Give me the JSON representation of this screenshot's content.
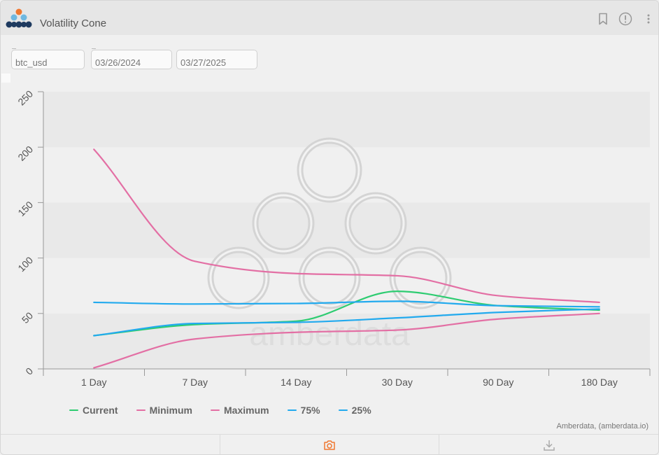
{
  "header": {
    "title": "Volatility Cone"
  },
  "filters": {
    "asset": "btc_usd",
    "start_date": "03/26/2024",
    "end_date": "03/27/2025"
  },
  "watermark": "amberdata",
  "credit": "Amberdata, (amberdata.io)",
  "colors": {
    "current": "#2ecc71",
    "minimum": "#e36fa4",
    "maximum": "#e36fa4",
    "p75": "#22aaee",
    "p25": "#22aaee",
    "accent": "#f07830"
  },
  "icons": {
    "bookmark": "bookmark-icon",
    "info": "info-icon",
    "more": "more-vertical-icon",
    "camera": "camera-icon",
    "download": "download-icon"
  },
  "chart_data": {
    "type": "line",
    "title": "",
    "xlabel": "",
    "ylabel": "",
    "categories": [
      "1 Day",
      "7 Day",
      "14 Day",
      "30 Day",
      "90 Day",
      "180 Day"
    ],
    "ylim": [
      0,
      250
    ],
    "yticks": [
      "0",
      "50",
      "100",
      "150",
      "200",
      "250"
    ],
    "grid": true,
    "legend": "bottom",
    "series": [
      {
        "name": "Current",
        "color": "#2ecc71",
        "values": [
          30,
          40,
          43,
          70,
          57,
          53
        ]
      },
      {
        "name": "Minimum",
        "color": "#e36fa4",
        "values": [
          1,
          27,
          33,
          35,
          45,
          50
        ]
      },
      {
        "name": "Maximum",
        "color": "#e36fa4",
        "values": [
          198,
          97,
          86,
          84,
          66,
          60
        ]
      },
      {
        "name": "75%",
        "color": "#22aaee",
        "values": [
          60,
          58.5,
          59,
          61,
          57,
          56
        ]
      },
      {
        "name": "25%",
        "color": "#22aaee",
        "values": [
          30,
          41,
          42,
          46,
          51,
          54
        ]
      }
    ]
  }
}
